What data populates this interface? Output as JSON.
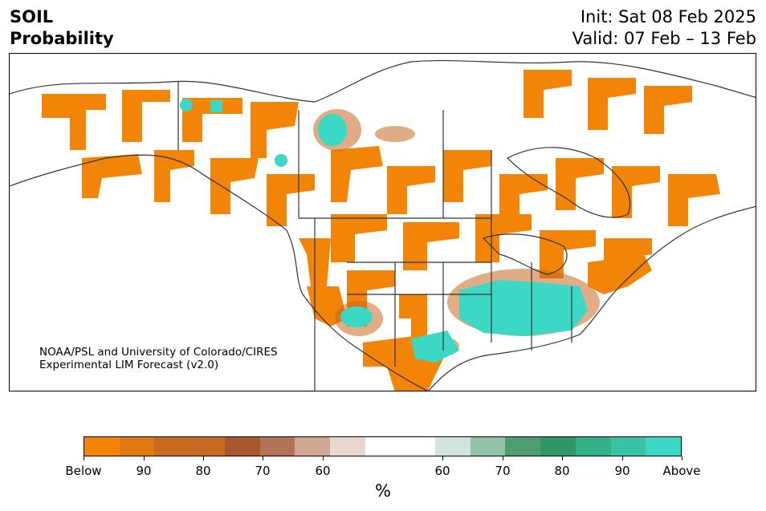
{
  "header": {
    "title_line1": "SOIL",
    "title_line2": "Probability",
    "init": "Init: Sat 08 Feb 2025",
    "valid": "Valid: 07 Feb – 13 Feb"
  },
  "credit": {
    "line1": "NOAA/PSL and University of Colorado/CIRES",
    "line2": "Experimental LIM Forecast (v2.0)"
  },
  "colorbar": {
    "colors": [
      "#f28407",
      "#e07a12",
      "#c96a21",
      "#c66a24",
      "#a8582c",
      "#b07356",
      "#d0a792",
      "#e8d8d0",
      "#ffffff",
      "#ffffff",
      "#d0e6dc",
      "#92c2a8",
      "#4f9e72",
      "#2f9668",
      "#34b08c",
      "#38c2a6",
      "#3cd8c6"
    ],
    "ticks": [
      "Below",
      "90",
      "80",
      "70",
      "60",
      "60",
      "70",
      "80",
      "90",
      "Above"
    ],
    "units": "%"
  },
  "map": {
    "below_color": "#f28407",
    "above_color": "#3cd8c6",
    "border_color": "#333333"
  }
}
